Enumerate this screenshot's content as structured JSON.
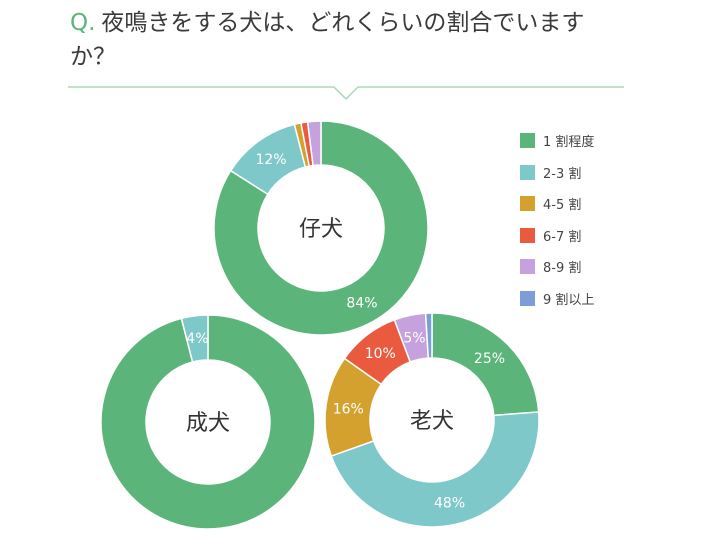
{
  "question": {
    "prefix": "Q.",
    "text": "夜鳴きをする犬は、どれくらいの割合でいますか？"
  },
  "colors": {
    "green": "#5bb57a",
    "teal": "#7ec8c9",
    "gold": "#d4a12e",
    "red": "#e95a3e",
    "lavender": "#c5a2dd",
    "blue": "#7b9ed6",
    "accent": "#5bb57a"
  },
  "legend": [
    {
      "label": "1 割程度",
      "color": "#5bb57a"
    },
    {
      "label": "2-3 割",
      "color": "#7ec8c9"
    },
    {
      "label": "4-5 割",
      "color": "#d4a12e"
    },
    {
      "label": "6-7 割",
      "color": "#e95a3e"
    },
    {
      "label": "8-9 割",
      "color": "#c5a2dd"
    },
    {
      "label": "9 割以上",
      "color": "#7b9ed6"
    }
  ],
  "chart_data": [
    {
      "type": "pie",
      "title": "仔犬",
      "categories": [
        "1 割程度",
        "2-3 割",
        "4-5 割",
        "6-7 割",
        "8-9 割",
        "9 割以上"
      ],
      "values": [
        84,
        12,
        1,
        1,
        2,
        0
      ],
      "labels": [
        "84%",
        "12%",
        "",
        "",
        "",
        ""
      ]
    },
    {
      "type": "pie",
      "title": "成犬",
      "categories": [
        "1 割程度",
        "2-3 割",
        "4-5 割",
        "6-7 割",
        "8-9 割",
        "9 割以上"
      ],
      "values": [
        96,
        4,
        0,
        0,
        0,
        0
      ],
      "labels": [
        "",
        "4%",
        "",
        "",
        "",
        ""
      ]
    },
    {
      "type": "pie",
      "title": "老犬",
      "categories": [
        "1 割程度",
        "2-3 割",
        "4-5 割",
        "6-7 割",
        "8-9 割",
        "9 割以上"
      ],
      "values": [
        25,
        48,
        16,
        10,
        5,
        1
      ],
      "labels": [
        "25%",
        "48%",
        "16%",
        "10%",
        "5%",
        ""
      ]
    }
  ]
}
